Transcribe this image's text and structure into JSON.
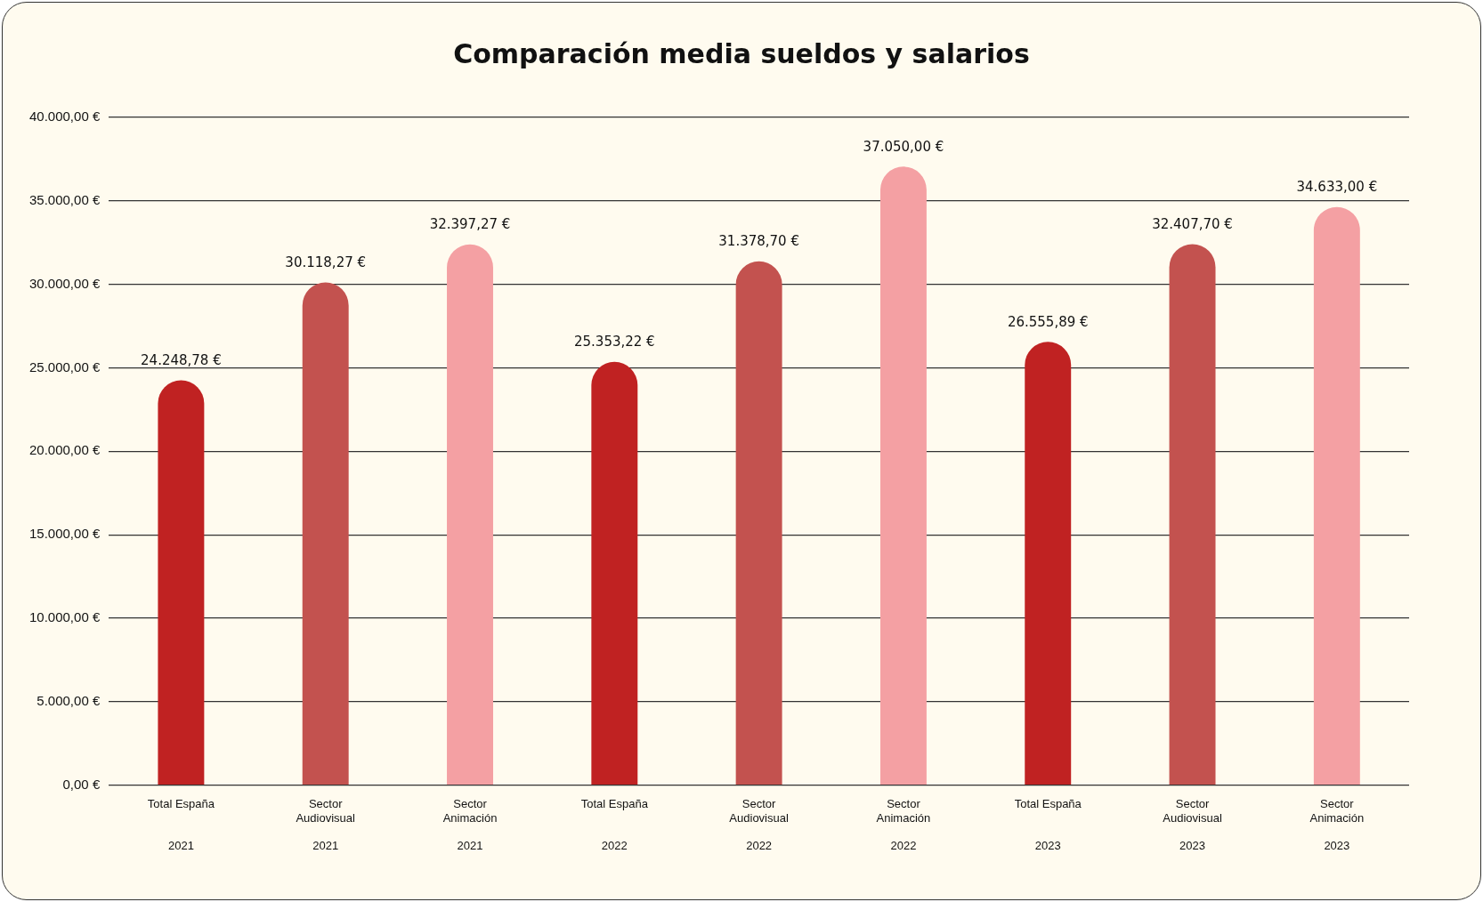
{
  "chart_data": {
    "type": "bar",
    "title": "Comparación media sueldos y salarios",
    "categories": [
      "Total España\n\n\n2021",
      "Sector\nAudiovisual\n\n2021",
      "Sector\nAnimación\n\n2021",
      "Total España\n\n\n2022",
      "Sector\nAudiovisual\n\n2022",
      "Sector\nAnimación\n\n2022",
      "Total España\n\n\n2023",
      "Sector\nAudiovisual\n\n2023",
      "Sector\nAnimación\n\n2023"
    ],
    "values": [
      24248.78,
      30118.27,
      32397.27,
      25353.22,
      31378.7,
      37050.0,
      26555.89,
      32407.7,
      34633.0
    ],
    "value_labels": [
      "24.248,78 €",
      "30.118,27 €",
      "32.397,27 €",
      "25.353,22 €",
      "31.378,70 €",
      "37.050,00 €",
      "26.555,89 €",
      "32.407,70 €",
      "34.633,00 €"
    ],
    "colors": [
      "#c02222",
      "#c3524f",
      "#f4a0a3",
      "#c02222",
      "#c3524f",
      "#f4a0a3",
      "#c02222",
      "#c3524f",
      "#f4a0a3"
    ],
    "ylim": [
      0,
      40000
    ],
    "yticks": [
      {
        "value": 0,
        "label": "0,00 €"
      },
      {
        "value": 5000,
        "label": "5.000,00 €"
      },
      {
        "value": 10000,
        "label": "10.000,00 €"
      },
      {
        "value": 15000,
        "label": "15.000,00 €"
      },
      {
        "value": 20000,
        "label": "20.000,00 €"
      },
      {
        "value": 25000,
        "label": "25.000,00 €"
      },
      {
        "value": 30000,
        "label": "30.000,00 €"
      },
      {
        "value": 35000,
        "label": "35.000,00 €"
      },
      {
        "value": 40000,
        "label": "40.000,00 €"
      }
    ],
    "grid": "y",
    "legend": false
  }
}
